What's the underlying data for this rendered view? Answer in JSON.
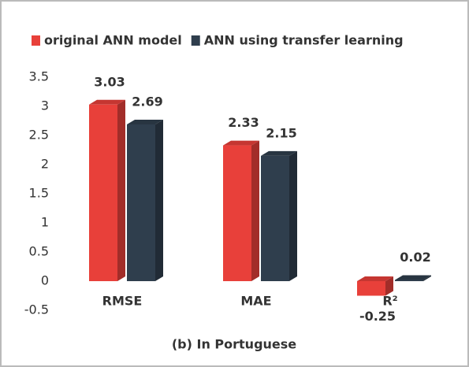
{
  "chart_data": {
    "type": "bar",
    "title": "(b) In Portuguese",
    "categories": [
      "RMSE",
      "MAE",
      "R²"
    ],
    "series": [
      {
        "name": "original ANN model",
        "color": "#e8403a",
        "values": [
          3.03,
          2.33,
          -0.25
        ]
      },
      {
        "name": "ANN using transfer learning",
        "color": "#2f3e4d",
        "values": [
          2.69,
          2.15,
          0.02
        ]
      }
    ],
    "ylim": [
      -0.5,
      3.5
    ],
    "yticks": [
      -0.5,
      0,
      0.5,
      1,
      1.5,
      2,
      2.5,
      3,
      3.5
    ],
    "grid": false,
    "legend": "top"
  }
}
